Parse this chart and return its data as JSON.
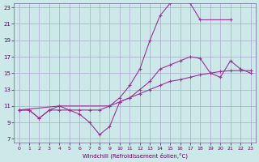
{
  "bg_color": "#cce8e8",
  "grid_color": "#aaaacc",
  "line_color": "#993399",
  "xlabel": "Windchill (Refroidissement éolien,°C)",
  "xlim": [
    0,
    23
  ],
  "ylim": [
    7,
    23
  ],
  "yticks": [
    7,
    9,
    11,
    13,
    15,
    17,
    19,
    21,
    23
  ],
  "xticks": [
    0,
    1,
    2,
    3,
    4,
    5,
    6,
    7,
    8,
    9,
    10,
    11,
    12,
    13,
    14,
    15,
    16,
    17,
    18,
    19,
    20,
    21,
    22,
    23
  ],
  "line1_x": [
    0,
    1,
    2,
    3,
    4,
    5,
    6,
    7,
    8,
    9,
    10,
    11,
    12,
    13,
    14,
    15,
    16,
    17,
    18,
    19,
    20,
    21,
    22,
    23
  ],
  "line1_y": [
    10.5,
    10.5,
    9.5,
    10.5,
    10.5,
    10.5,
    10.0,
    9.0,
    7.5,
    8.5,
    11.5,
    12.0,
    12.5,
    13.0,
    13.5,
    14.0,
    14.2,
    14.5,
    14.8,
    15.0,
    15.2,
    15.3,
    15.3,
    15.3
  ],
  "line2_x": [
    0,
    1,
    2,
    3,
    4,
    5,
    6,
    7,
    8,
    9,
    10,
    11,
    12,
    13,
    14,
    15,
    16,
    17,
    18,
    19,
    20,
    21,
    22,
    23
  ],
  "line2_y": [
    10.5,
    10.5,
    9.5,
    10.5,
    11.0,
    10.5,
    10.5,
    10.5,
    10.5,
    11.0,
    11.5,
    12.0,
    13.0,
    14.0,
    15.5,
    16.0,
    16.5,
    17.0,
    16.8,
    15.0,
    14.5,
    16.5,
    15.5,
    15.0
  ],
  "line3_x": [
    0,
    4,
    9,
    10,
    11,
    12,
    13,
    14,
    15,
    16,
    17,
    18,
    21,
    22,
    23
  ],
  "line3_y": [
    10.5,
    11.0,
    11.0,
    12.0,
    13.5,
    15.5,
    19.0,
    22.0,
    23.5,
    24.0,
    23.5,
    21.5,
    21.5,
    null,
    null
  ]
}
